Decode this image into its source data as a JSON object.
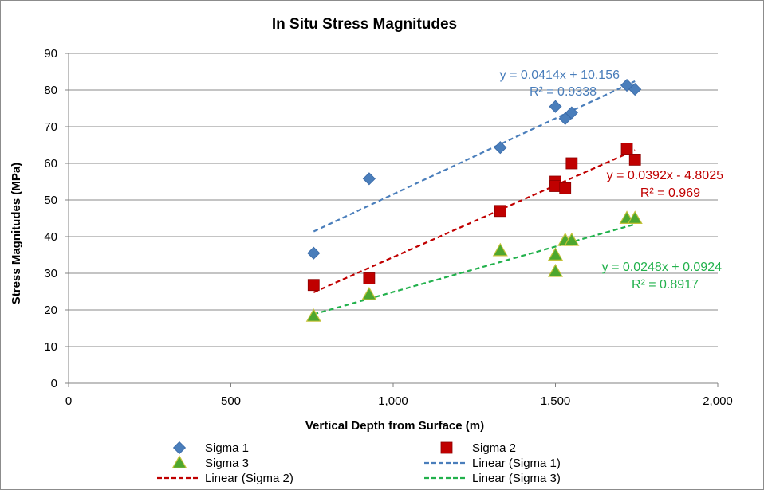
{
  "chart_data": {
    "type": "scatter",
    "title": "In Situ Stress Magnitudes",
    "xlabel": "Vertical Depth from Surface (m)",
    "ylabel": "Stress Magnitudes (MPa)",
    "xlim": [
      0,
      2000
    ],
    "ylim": [
      0,
      90
    ],
    "x_ticks": [
      0,
      500,
      1000,
      1500,
      2000
    ],
    "x_tick_labels": [
      "0",
      "500",
      "1,000",
      "1,500",
      "2,000"
    ],
    "y_ticks": [
      0,
      10,
      20,
      30,
      40,
      50,
      60,
      70,
      80,
      90
    ],
    "y_tick_labels": [
      "0",
      "10",
      "20",
      "30",
      "40",
      "50",
      "60",
      "70",
      "80",
      "90"
    ],
    "grid": "horizontal",
    "legend_position": "bottom",
    "series": [
      {
        "name": "Sigma 1",
        "marker": "diamond",
        "color": "#4a7ebb",
        "points": [
          {
            "x": 755,
            "y": 35.5
          },
          {
            "x": 926,
            "y": 55.8
          },
          {
            "x": 1330,
            "y": 64.3
          },
          {
            "x": 1500,
            "y": 75.5
          },
          {
            "x": 1530,
            "y": 72.2
          },
          {
            "x": 1550,
            "y": 73.8
          },
          {
            "x": 1720,
            "y": 81.3
          },
          {
            "x": 1745,
            "y": 80.2
          }
        ]
      },
      {
        "name": "Sigma 2",
        "marker": "square",
        "color": "#c00000",
        "points": [
          {
            "x": 755,
            "y": 26.8
          },
          {
            "x": 926,
            "y": 28.6
          },
          {
            "x": 1330,
            "y": 47.0
          },
          {
            "x": 1500,
            "y": 55.0
          },
          {
            "x": 1500,
            "y": 53.8
          },
          {
            "x": 1530,
            "y": 53.2
          },
          {
            "x": 1550,
            "y": 60.0
          },
          {
            "x": 1720,
            "y": 64.0
          },
          {
            "x": 1745,
            "y": 61.0
          }
        ]
      },
      {
        "name": "Sigma 3",
        "marker": "triangle",
        "color": "#4ea72e",
        "points": [
          {
            "x": 755,
            "y": 18.3
          },
          {
            "x": 926,
            "y": 24.2
          },
          {
            "x": 1330,
            "y": 36.2
          },
          {
            "x": 1500,
            "y": 35.0
          },
          {
            "x": 1500,
            "y": 30.5
          },
          {
            "x": 1530,
            "y": 39.0
          },
          {
            "x": 1550,
            "y": 39.0
          },
          {
            "x": 1720,
            "y": 45.0
          },
          {
            "x": 1745,
            "y": 45.0
          }
        ]
      }
    ],
    "trendlines": [
      {
        "name": "Linear (Sigma 1)",
        "slope": 0.0414,
        "intercept": 10.156,
        "x_range": [
          755,
          1745
        ],
        "color": "#4a7ebb",
        "equation": "y = 0.0414x + 10.156",
        "r2": "R² = 0.9338"
      },
      {
        "name": "Linear (Sigma 2)",
        "slope": 0.0392,
        "intercept": -4.8025,
        "x_range": [
          755,
          1745
        ],
        "color": "#c00000",
        "equation": "y = 0.0392x - 4.8025",
        "r2": "R² = 0.969"
      },
      {
        "name": "Linear (Sigma 3)",
        "slope": 0.0248,
        "intercept": 0.0924,
        "x_range": [
          755,
          1745
        ],
        "color": "#22b14c",
        "equation": "y = 0.0248x + 0.0924",
        "r2": "R² = 0.8917"
      }
    ],
    "legend": [
      "Sigma 1",
      "Sigma 2",
      "Sigma 3",
      "Linear (Sigma 1)",
      "Linear (Sigma 2)",
      "Linear (Sigma 3)"
    ]
  }
}
